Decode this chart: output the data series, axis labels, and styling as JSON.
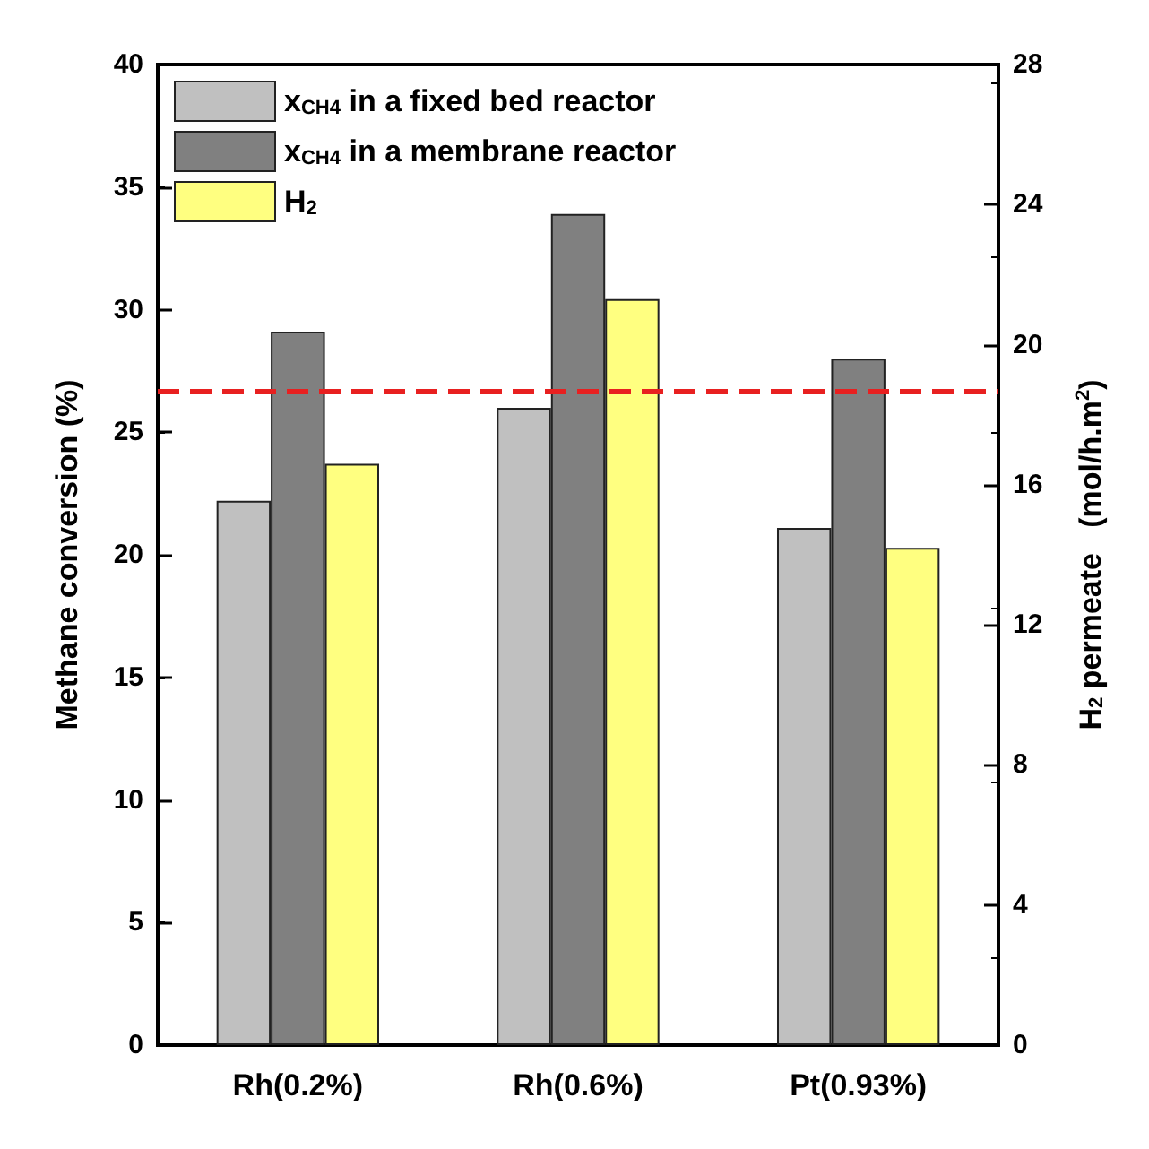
{
  "chart_data": {
    "type": "bar",
    "categories": [
      "Rh(0.2%)",
      "Rh(0.6%)",
      "Pt(0.93%)"
    ],
    "series": [
      {
        "name": "x$_{CH4}$ in a fixed bed reactor",
        "color": "#c0c0c0",
        "values": [
          22.2,
          26.0,
          21.1
        ]
      },
      {
        "name": "x$_{CH4}$ in a membrane reactor",
        "color": "#808080",
        "values": [
          29.1,
          33.9,
          28.0
        ]
      },
      {
        "name": "H$_{2}$",
        "color": "#ffff80",
        "values": [
          16.6,
          21.3,
          14.2
        ],
        "axis": "y2"
      }
    ],
    "ylabel": "Methane conversion (%)",
    "y2label": "H$_{2}$ permeate   (mol/h.m$^{2}$)",
    "ylim": [
      0,
      40
    ],
    "yticks": [
      0,
      5,
      10,
      15,
      20,
      25,
      30,
      35,
      40
    ],
    "y2lim": [
      0,
      28
    ],
    "y2ticks": [
      0,
      4,
      8,
      12,
      16,
      20,
      24,
      28
    ],
    "ref_lines": [
      {
        "axis": "y",
        "value": 26.7,
        "color": "#e82020",
        "line_style": "dashed"
      }
    ],
    "legend": "top left",
    "grid": false
  }
}
